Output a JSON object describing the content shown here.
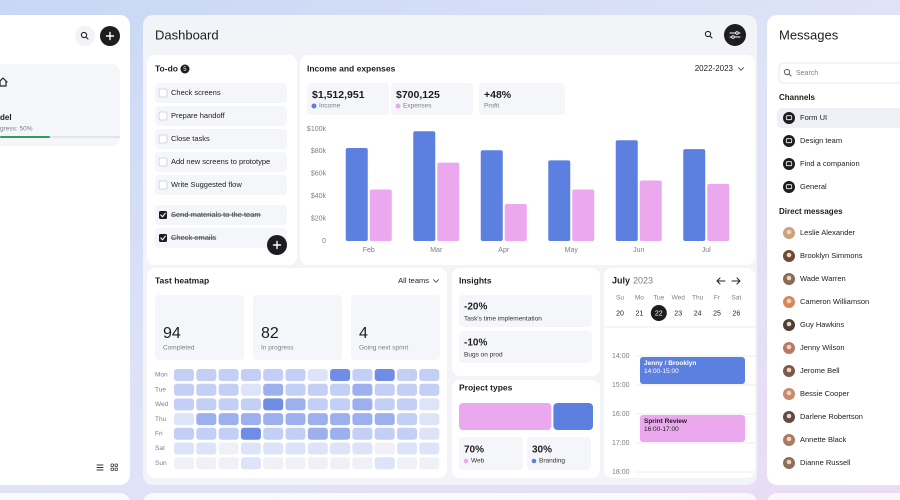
{
  "left_panel": {
    "item_title": "del",
    "item_progress": "gress: 50%"
  },
  "dashboard": {
    "title": "Dashboard",
    "todo": {
      "title": "To-do",
      "count": 5,
      "items": [
        {
          "text": "Check screens",
          "done": false
        },
        {
          "text": "Prepare handoff",
          "done": false
        },
        {
          "text": "Close tasks",
          "done": false
        },
        {
          "text": "Add new screens to prototype",
          "done": false
        },
        {
          "text": "Write Suggested flow",
          "done": false
        },
        {
          "text": "Send materials to the team",
          "done": true
        },
        {
          "text": "Check emails",
          "done": true
        }
      ]
    },
    "income": {
      "title": "Income and expenses",
      "period": "2022-2023",
      "stats": [
        {
          "value": "$1,512,951"
        },
        {
          "value": "$700,125"
        },
        {
          "value": "+48%",
          "label": "Profit"
        }
      ],
      "chart_data": {
        "type": "bar",
        "categories": [
          "Feb",
          "Mar",
          "Apr",
          "May",
          "Jun",
          "Jul"
        ],
        "series": [
          {
            "name": "Income",
            "color": "#5b80e0",
            "values": [
              83000,
              98000,
              81000,
              72000,
              90000,
              82000
            ]
          },
          {
            "name": "Expenses",
            "color": "#eba8ef",
            "values": [
              46000,
              70000,
              33000,
              46000,
              54000,
              51000
            ]
          }
        ],
        "ylim": [
          0,
          100000
        ],
        "yticks": [
          0,
          {
            "value": 20000,
            "label": "$20k"
          },
          {
            "value": 40000,
            "label": "$40k"
          },
          {
            "value": 60000,
            "label": "$60k"
          },
          {
            "value": 80000,
            "label": "$80k"
          },
          {
            "value": 100000,
            "label": "$100k"
          }
        ],
        "grid": false
      }
    },
    "heatmap": {
      "title": "Tast heatmap",
      "filter": "All teams",
      "stats": [
        {
          "value": 94,
          "label": "Completed"
        },
        {
          "value": 82,
          "label": "In progress"
        },
        {
          "value": 4,
          "label": "Going next sprint"
        }
      ],
      "days": [
        "Mon",
        "Tue",
        "Wed",
        "Thu",
        "Fri",
        "Sat",
        "Sun"
      ],
      "colors": [
        "#f0f1f6",
        "#dde4f8",
        "#c3cff4",
        "#9db0ee",
        "#6f8ce6"
      ],
      "levels": [
        [
          2,
          2,
          2,
          2,
          2,
          2,
          1,
          4,
          2,
          4,
          2,
          2
        ],
        [
          2,
          2,
          2,
          1,
          3,
          2,
          2,
          2,
          3,
          2,
          2,
          2
        ],
        [
          2,
          2,
          2,
          2,
          4,
          3,
          2,
          2,
          3,
          2,
          2,
          1
        ],
        [
          1,
          3,
          3,
          3,
          3,
          3,
          3,
          3,
          3,
          3,
          2,
          1
        ],
        [
          2,
          2,
          2,
          4,
          2,
          2,
          3,
          3,
          2,
          2,
          2,
          1
        ],
        [
          1,
          1,
          0,
          1,
          1,
          1,
          1,
          1,
          1,
          0,
          1,
          1
        ],
        [
          0,
          0,
          0,
          1,
          0,
          0,
          0,
          0,
          0,
          1,
          0,
          0
        ]
      ]
    },
    "insights": {
      "title": "Insights",
      "items": [
        {
          "value": "-20%",
          "label": "Task's time implementation"
        },
        {
          "value": "-10%",
          "label": "Bugs on prod"
        }
      ]
    },
    "project_types": {
      "title": "Project types",
      "chart_data": {
        "type": "bar",
        "categories": [
          "Web",
          "Branding"
        ],
        "values": [
          70,
          30
        ],
        "value_labels": [
          "70%",
          "30%"
        ],
        "colors": [
          "#eba8ef",
          "#5b80e0"
        ]
      }
    },
    "calendar": {
      "month": "July",
      "year": 2023,
      "weekdays": [
        "Su",
        "Mo",
        "Tue",
        "Wed",
        "Thu",
        "Fr",
        "Sat"
      ],
      "dates": [
        20,
        21,
        22,
        23,
        24,
        25,
        26
      ],
      "selected": 2,
      "times": [
        "14:00",
        "15:00",
        "16:00",
        "17:00",
        "18:00"
      ],
      "events": [
        {
          "title": "Jenny / Brooklyn",
          "time": "14:00-15:00",
          "color": "#5b80e0",
          "text_color": "#ffffff"
        },
        {
          "title": "Sprint Review",
          "time": "16:00-17:00",
          "color": "#eba8ef",
          "text_color": "#1d1d1f"
        }
      ]
    }
  },
  "messages": {
    "title": "Messages",
    "search": "Search",
    "channels_title": "Channels",
    "channels": [
      "Form UI",
      "Design team",
      "Find a companion",
      "General"
    ],
    "active_channel": 0,
    "direct_title": "Direct messages",
    "people": [
      "Leslie Alexander",
      "Brooklyn Simmons",
      "Wade Warren",
      "Cameron Williamson",
      "Guy Hawkins",
      "Jenny Wilson",
      "Jerome Bell",
      "Bessie Cooper",
      "Darlene Robertson",
      "Annette Black",
      "Dianne Russell"
    ]
  }
}
